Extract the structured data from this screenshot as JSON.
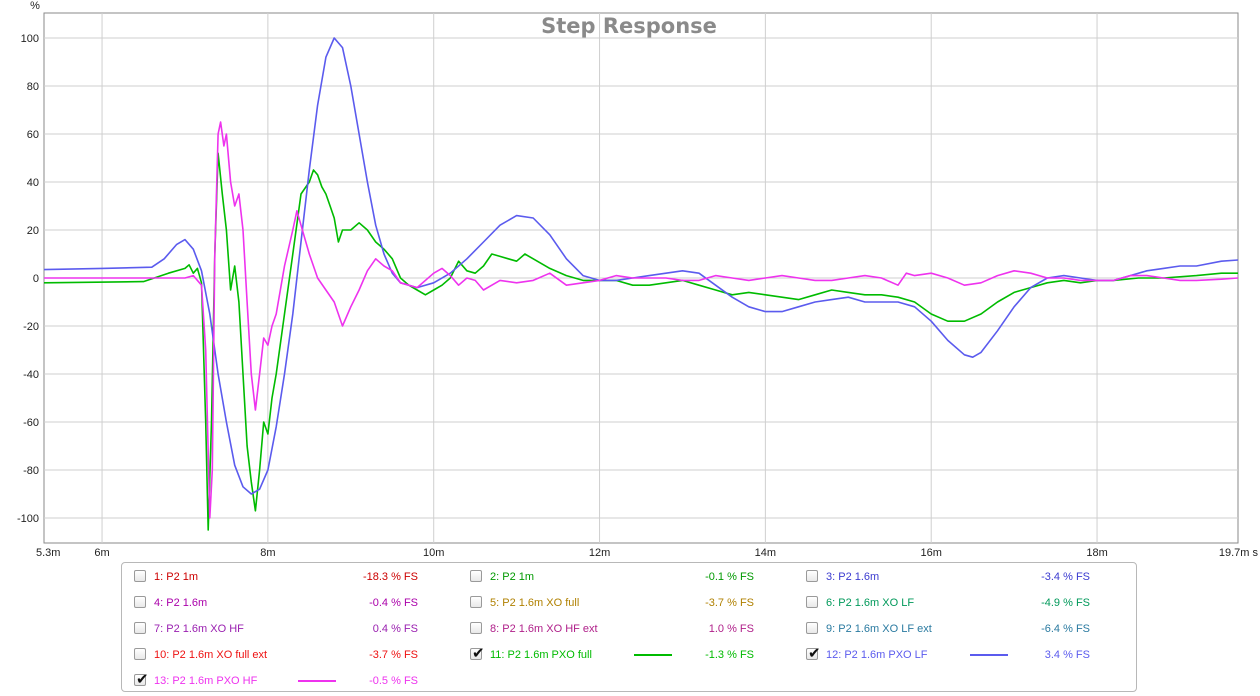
{
  "chart_data": {
    "type": "line",
    "title": "Step Response",
    "ylabel": "%",
    "xunit": "s",
    "xlim": [
      5.3,
      19.7
    ],
    "ylim": [
      -110,
      110
    ],
    "y_ticks": [
      "100",
      "80",
      "60",
      "40",
      "20",
      "0",
      "-20",
      "-40",
      "-60",
      "-80",
      "-100"
    ],
    "x_ticks": [
      "5.3m",
      "6m",
      "8m",
      "10m",
      "12m",
      "14m",
      "16m",
      "18m",
      "19.7m"
    ],
    "grid": true,
    "series": [
      {
        "name": "11: P2 1.6m PXO full",
        "color": "#00bb00",
        "points": [
          [
            5.3,
            -2
          ],
          [
            6.5,
            -1.5
          ],
          [
            6.8,
            2
          ],
          [
            7.0,
            4
          ],
          [
            7.05,
            5.5
          ],
          [
            7.1,
            2
          ],
          [
            7.15,
            4
          ],
          [
            7.2,
            -2
          ],
          [
            7.25,
            -60
          ],
          [
            7.28,
            -105
          ],
          [
            7.32,
            -60
          ],
          [
            7.36,
            10
          ],
          [
            7.4,
            52
          ],
          [
            7.45,
            35
          ],
          [
            7.5,
            20
          ],
          [
            7.55,
            -5
          ],
          [
            7.6,
            5
          ],
          [
            7.65,
            -10
          ],
          [
            7.7,
            -40
          ],
          [
            7.75,
            -70
          ],
          [
            7.8,
            -85
          ],
          [
            7.85,
            -97
          ],
          [
            7.9,
            -80
          ],
          [
            7.95,
            -60
          ],
          [
            8.0,
            -65
          ],
          [
            8.05,
            -50
          ],
          [
            8.1,
            -40
          ],
          [
            8.2,
            -15
          ],
          [
            8.3,
            10
          ],
          [
            8.4,
            35
          ],
          [
            8.5,
            40
          ],
          [
            8.55,
            45
          ],
          [
            8.6,
            43
          ],
          [
            8.65,
            38
          ],
          [
            8.7,
            35
          ],
          [
            8.75,
            30
          ],
          [
            8.8,
            25
          ],
          [
            8.85,
            15
          ],
          [
            8.9,
            20
          ],
          [
            9.0,
            20
          ],
          [
            9.1,
            23
          ],
          [
            9.2,
            20
          ],
          [
            9.3,
            15
          ],
          [
            9.4,
            12
          ],
          [
            9.5,
            8
          ],
          [
            9.6,
            0
          ],
          [
            9.7,
            -3
          ],
          [
            9.8,
            -5
          ],
          [
            9.9,
            -7
          ],
          [
            10.0,
            -5
          ],
          [
            10.1,
            -3
          ],
          [
            10.2,
            0
          ],
          [
            10.3,
            7
          ],
          [
            10.4,
            3
          ],
          [
            10.5,
            2
          ],
          [
            10.6,
            5
          ],
          [
            10.7,
            10
          ],
          [
            10.8,
            9
          ],
          [
            10.9,
            8
          ],
          [
            11.0,
            7
          ],
          [
            11.1,
            10
          ],
          [
            11.2,
            8
          ],
          [
            11.4,
            4
          ],
          [
            11.6,
            1
          ],
          [
            11.8,
            -1
          ],
          [
            12.0,
            -1
          ],
          [
            12.2,
            -1
          ],
          [
            12.4,
            -3
          ],
          [
            12.6,
            -3
          ],
          [
            12.8,
            -2
          ],
          [
            13.0,
            -1
          ],
          [
            13.2,
            -3
          ],
          [
            13.4,
            -5
          ],
          [
            13.6,
            -7
          ],
          [
            13.8,
            -6
          ],
          [
            14.0,
            -7
          ],
          [
            14.2,
            -8
          ],
          [
            14.4,
            -9
          ],
          [
            14.6,
            -7
          ],
          [
            14.8,
            -5
          ],
          [
            15.0,
            -6
          ],
          [
            15.2,
            -7
          ],
          [
            15.4,
            -7
          ],
          [
            15.6,
            -8
          ],
          [
            15.8,
            -10
          ],
          [
            16.0,
            -15
          ],
          [
            16.2,
            -18
          ],
          [
            16.4,
            -18
          ],
          [
            16.6,
            -15
          ],
          [
            16.8,
            -10
          ],
          [
            17.0,
            -6
          ],
          [
            17.2,
            -4
          ],
          [
            17.4,
            -2
          ],
          [
            17.6,
            -1
          ],
          [
            17.8,
            -2
          ],
          [
            18.0,
            -1
          ],
          [
            18.2,
            -1
          ],
          [
            18.5,
            0
          ],
          [
            18.8,
            0
          ],
          [
            19.2,
            1
          ],
          [
            19.5,
            2
          ],
          [
            19.7,
            2
          ]
        ]
      },
      {
        "name": "12: P2 1.6m PXO LF",
        "color": "#5b5bee",
        "points": [
          [
            5.3,
            3.5
          ],
          [
            6.0,
            4
          ],
          [
            6.6,
            4.5
          ],
          [
            6.75,
            8
          ],
          [
            6.9,
            14
          ],
          [
            7.0,
            16
          ],
          [
            7.1,
            12
          ],
          [
            7.2,
            3
          ],
          [
            7.3,
            -15
          ],
          [
            7.4,
            -40
          ],
          [
            7.5,
            -60
          ],
          [
            7.6,
            -78
          ],
          [
            7.7,
            -87
          ],
          [
            7.8,
            -90
          ],
          [
            7.9,
            -88
          ],
          [
            8.0,
            -80
          ],
          [
            8.1,
            -62
          ],
          [
            8.2,
            -40
          ],
          [
            8.3,
            -15
          ],
          [
            8.4,
            15
          ],
          [
            8.5,
            45
          ],
          [
            8.6,
            72
          ],
          [
            8.7,
            92
          ],
          [
            8.8,
            100
          ],
          [
            8.9,
            96
          ],
          [
            9.0,
            80
          ],
          [
            9.1,
            60
          ],
          [
            9.2,
            40
          ],
          [
            9.3,
            22
          ],
          [
            9.4,
            10
          ],
          [
            9.5,
            2
          ],
          [
            9.6,
            -2
          ],
          [
            9.8,
            -4
          ],
          [
            10.0,
            -2
          ],
          [
            10.2,
            2
          ],
          [
            10.4,
            8
          ],
          [
            10.6,
            15
          ],
          [
            10.8,
            22
          ],
          [
            11.0,
            26
          ],
          [
            11.2,
            25
          ],
          [
            11.4,
            18
          ],
          [
            11.6,
            8
          ],
          [
            11.8,
            1
          ],
          [
            12.0,
            -1
          ],
          [
            12.2,
            -1
          ],
          [
            12.4,
            0
          ],
          [
            12.6,
            1
          ],
          [
            12.8,
            2
          ],
          [
            13.0,
            3
          ],
          [
            13.2,
            2
          ],
          [
            13.4,
            -3
          ],
          [
            13.6,
            -8
          ],
          [
            13.8,
            -12
          ],
          [
            14.0,
            -14
          ],
          [
            14.2,
            -14
          ],
          [
            14.4,
            -12
          ],
          [
            14.6,
            -10
          ],
          [
            14.8,
            -9
          ],
          [
            15.0,
            -8
          ],
          [
            15.2,
            -10
          ],
          [
            15.4,
            -10
          ],
          [
            15.6,
            -10
          ],
          [
            15.8,
            -12
          ],
          [
            16.0,
            -18
          ],
          [
            16.2,
            -26
          ],
          [
            16.4,
            -32
          ],
          [
            16.5,
            -33
          ],
          [
            16.6,
            -31
          ],
          [
            16.8,
            -22
          ],
          [
            17.0,
            -12
          ],
          [
            17.2,
            -4
          ],
          [
            17.4,
            0
          ],
          [
            17.6,
            1
          ],
          [
            17.8,
            0
          ],
          [
            18.0,
            -1
          ],
          [
            18.2,
            -1
          ],
          [
            18.4,
            1
          ],
          [
            18.6,
            3
          ],
          [
            18.8,
            4
          ],
          [
            19.0,
            5
          ],
          [
            19.2,
            5
          ],
          [
            19.5,
            7
          ],
          [
            19.7,
            7.5
          ]
        ]
      },
      {
        "name": "13: P2 1.6m PXO HF",
        "color": "#ee33ee",
        "points": [
          [
            5.3,
            0
          ],
          [
            6.5,
            0
          ],
          [
            7.0,
            0
          ],
          [
            7.1,
            1
          ],
          [
            7.2,
            -3
          ],
          [
            7.25,
            -30
          ],
          [
            7.3,
            -100
          ],
          [
            7.33,
            -80
          ],
          [
            7.36,
            10
          ],
          [
            7.4,
            60
          ],
          [
            7.43,
            65
          ],
          [
            7.47,
            55
          ],
          [
            7.5,
            60
          ],
          [
            7.55,
            40
          ],
          [
            7.6,
            30
          ],
          [
            7.65,
            35
          ],
          [
            7.7,
            20
          ],
          [
            7.75,
            -10
          ],
          [
            7.8,
            -40
          ],
          [
            7.85,
            -55
          ],
          [
            7.9,
            -40
          ],
          [
            7.95,
            -25
          ],
          [
            8.0,
            -28
          ],
          [
            8.05,
            -20
          ],
          [
            8.1,
            -15
          ],
          [
            8.2,
            5
          ],
          [
            8.3,
            20
          ],
          [
            8.35,
            28
          ],
          [
            8.4,
            22
          ],
          [
            8.5,
            10
          ],
          [
            8.6,
            0
          ],
          [
            8.7,
            -5
          ],
          [
            8.8,
            -10
          ],
          [
            8.9,
            -20
          ],
          [
            9.0,
            -12
          ],
          [
            9.1,
            -5
          ],
          [
            9.2,
            3
          ],
          [
            9.3,
            8
          ],
          [
            9.4,
            5
          ],
          [
            9.5,
            3
          ],
          [
            9.6,
            -2
          ],
          [
            9.7,
            -3
          ],
          [
            9.8,
            -4
          ],
          [
            10.0,
            2
          ],
          [
            10.1,
            4
          ],
          [
            10.2,
            1
          ],
          [
            10.3,
            -3
          ],
          [
            10.4,
            0
          ],
          [
            10.5,
            -1
          ],
          [
            10.6,
            -5
          ],
          [
            10.7,
            -3
          ],
          [
            10.8,
            -1
          ],
          [
            11.0,
            -2
          ],
          [
            11.2,
            -1
          ],
          [
            11.4,
            2
          ],
          [
            11.6,
            -3
          ],
          [
            11.8,
            -2
          ],
          [
            12.0,
            -1
          ],
          [
            12.2,
            1
          ],
          [
            12.4,
            0
          ],
          [
            12.6,
            0
          ],
          [
            12.8,
            0
          ],
          [
            13.0,
            -1
          ],
          [
            13.2,
            -1
          ],
          [
            13.4,
            1
          ],
          [
            13.6,
            0
          ],
          [
            13.8,
            -1
          ],
          [
            14.0,
            0
          ],
          [
            14.2,
            1
          ],
          [
            14.4,
            0
          ],
          [
            14.6,
            -1
          ],
          [
            14.8,
            -1
          ],
          [
            15.0,
            0
          ],
          [
            15.2,
            1
          ],
          [
            15.4,
            0
          ],
          [
            15.6,
            -3
          ],
          [
            15.7,
            2
          ],
          [
            15.8,
            1
          ],
          [
            16.0,
            2
          ],
          [
            16.2,
            0
          ],
          [
            16.4,
            -3
          ],
          [
            16.6,
            -2
          ],
          [
            16.8,
            1
          ],
          [
            17.0,
            3
          ],
          [
            17.2,
            2
          ],
          [
            17.4,
            0
          ],
          [
            17.6,
            0
          ],
          [
            17.8,
            -1
          ],
          [
            18.0,
            -1
          ],
          [
            18.2,
            -1
          ],
          [
            18.4,
            1
          ],
          [
            18.6,
            1
          ],
          [
            18.8,
            0
          ],
          [
            19.0,
            -1
          ],
          [
            19.2,
            -1
          ],
          [
            19.5,
            -0.5
          ],
          [
            19.7,
            0
          ]
        ]
      }
    ]
  },
  "legend": {
    "items": [
      {
        "label": "1: P2 1m",
        "value": "-18.3 % FS",
        "color": "#cc0000",
        "checked": false,
        "swatch": false
      },
      {
        "label": "2: P2 1m",
        "value": "-0.1 % FS",
        "color": "#009900",
        "checked": false,
        "swatch": false
      },
      {
        "label": "3: P2 1.6m",
        "value": "-3.4 % FS",
        "color": "#3b3bd0",
        "checked": false,
        "swatch": false
      },
      {
        "label": "4: P2 1.6m",
        "value": "-0.4 % FS",
        "color": "#aa00aa",
        "checked": false,
        "swatch": false
      },
      {
        "label": "5: P2 1.6m XO full",
        "value": "-3.7 % FS",
        "color": "#b08000",
        "checked": false,
        "swatch": false
      },
      {
        "label": "6: P2 1.6m XO LF",
        "value": "-4.9 % FS",
        "color": "#00995a",
        "checked": false,
        "swatch": false
      },
      {
        "label": "7: P2 1.6m XO HF",
        "value": "0.4 % FS",
        "color": "#9a20b0",
        "checked": false,
        "swatch": false
      },
      {
        "label": "8: P2 1.6m XO HF ext",
        "value": "1.0 % FS",
        "color": "#b0208a",
        "checked": false,
        "swatch": false
      },
      {
        "label": "9: P2 1.6m XO LF ext",
        "value": "-6.4 % FS",
        "color": "#2a7aa0",
        "checked": false,
        "swatch": false
      },
      {
        "label": "10: P2 1.6m XO full ext",
        "value": "-3.7 % FS",
        "color": "#ee1111",
        "checked": false,
        "swatch": false
      },
      {
        "label": "11: P2 1.6m PXO full",
        "value": "-1.3 % FS",
        "color": "#00bb00",
        "checked": true,
        "swatch": true
      },
      {
        "label": "12: P2 1.6m PXO LF",
        "value": "3.4 % FS",
        "color": "#5b5bee",
        "checked": true,
        "swatch": true
      },
      {
        "label": "13: P2 1.6m PXO HF",
        "value": "-0.5 % FS",
        "color": "#ee33ee",
        "checked": true,
        "swatch": true
      }
    ],
    "check_glyph": "✔"
  }
}
